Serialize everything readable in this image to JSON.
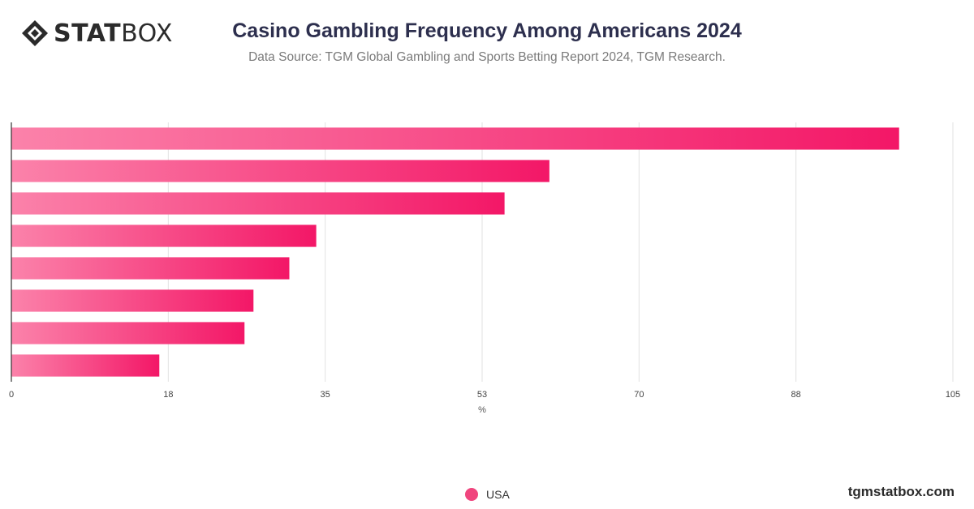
{
  "brand": {
    "logo_bold": "STAT",
    "logo_light": "BOX",
    "website": "tgmstatbox.com"
  },
  "header": {
    "title": "Casino Gambling Frequency Among Americans 2024",
    "subtitle": "Data Source: TGM Global Gambling and Sports Betting Report 2024, TGM Research."
  },
  "legend": {
    "label": "USA",
    "icon": "circle-icon"
  },
  "colors": {
    "bar_start": "#fb82aa",
    "bar_end": "#f31767",
    "grid": "#e2e2e2",
    "axis": "#333333",
    "text": "#2d2f4e"
  },
  "chart_data": {
    "type": "bar",
    "orientation": "horizontal",
    "categories": [
      "",
      "",
      "",
      "",
      "",
      "",
      "",
      ""
    ],
    "series": [
      {
        "name": "USA",
        "values": [
          99,
          60,
          55,
          34,
          31,
          27,
          26,
          16.5
        ]
      }
    ],
    "xlim": [
      0,
      105
    ],
    "xticks": [
      "0",
      "18",
      "35",
      "53",
      "70",
      "88",
      "105"
    ],
    "xlabel": "%",
    "ylabel": "",
    "grid": true,
    "legend_position": "bottom-center"
  }
}
